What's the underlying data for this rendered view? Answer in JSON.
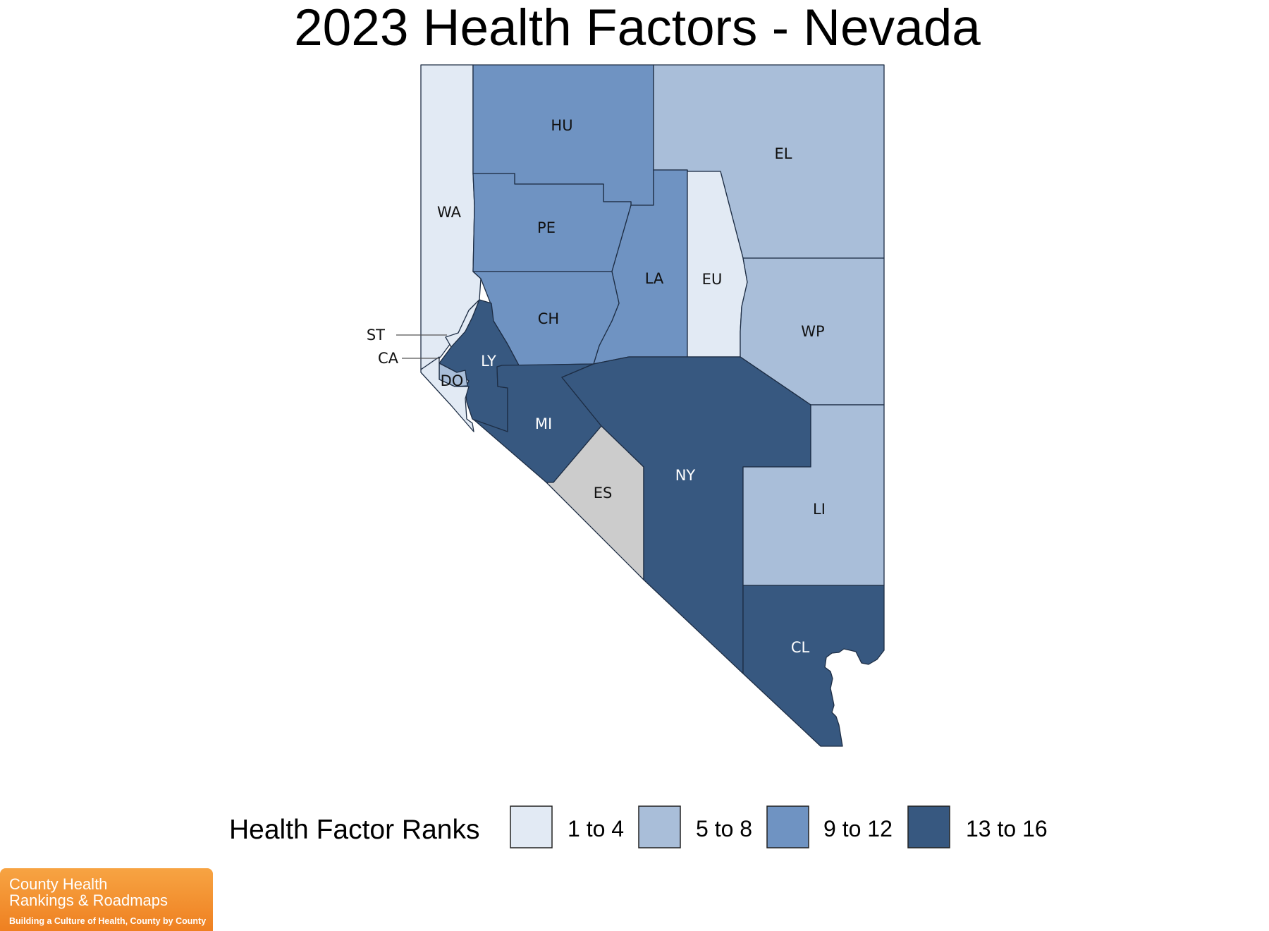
{
  "title": "2023 Health Factors - Nevada",
  "legend": {
    "title": "Health Factor Ranks",
    "items": [
      {
        "label": "1 to 4",
        "color": "#e2eaf4"
      },
      {
        "label": "5 to 8",
        "color": "#a9bed9"
      },
      {
        "label": "9 to 12",
        "color": "#6f93c2"
      },
      {
        "label": "13 to 16",
        "color": "#375880"
      }
    ]
  },
  "no_data_color": "#cccccc",
  "counties": [
    {
      "id": "WA",
      "label": "WA",
      "rank_group": "1 to 4"
    },
    {
      "id": "HU",
      "label": "HU",
      "rank_group": "9 to 12"
    },
    {
      "id": "EL",
      "label": "EL",
      "rank_group": "5 to 8"
    },
    {
      "id": "PE",
      "label": "PE",
      "rank_group": "9 to 12"
    },
    {
      "id": "LA",
      "label": "LA",
      "rank_group": "9 to 12"
    },
    {
      "id": "EU",
      "label": "EU",
      "rank_group": "1 to 4"
    },
    {
      "id": "CH",
      "label": "CH",
      "rank_group": "9 to 12"
    },
    {
      "id": "WP",
      "label": "WP",
      "rank_group": "5 to 8"
    },
    {
      "id": "ST",
      "label": "ST",
      "rank_group": "1 to 4"
    },
    {
      "id": "CA",
      "label": "CA",
      "rank_group": "5 to 8"
    },
    {
      "id": "LY",
      "label": "LY",
      "rank_group": "13 to 16"
    },
    {
      "id": "DO",
      "label": "DO",
      "rank_group": "1 to 4"
    },
    {
      "id": "MI",
      "label": "MI",
      "rank_group": "13 to 16"
    },
    {
      "id": "ES",
      "label": "ES",
      "rank_group": null
    },
    {
      "id": "NY",
      "label": "NY",
      "rank_group": "13 to 16"
    },
    {
      "id": "LI",
      "label": "LI",
      "rank_group": "5 to 8"
    },
    {
      "id": "CL",
      "label": "CL",
      "rank_group": "13 to 16"
    }
  ],
  "logo": {
    "line1": "County Health",
    "line2": "Rankings & Roadmaps",
    "tagline": "Building a Culture of Health, County by County"
  }
}
